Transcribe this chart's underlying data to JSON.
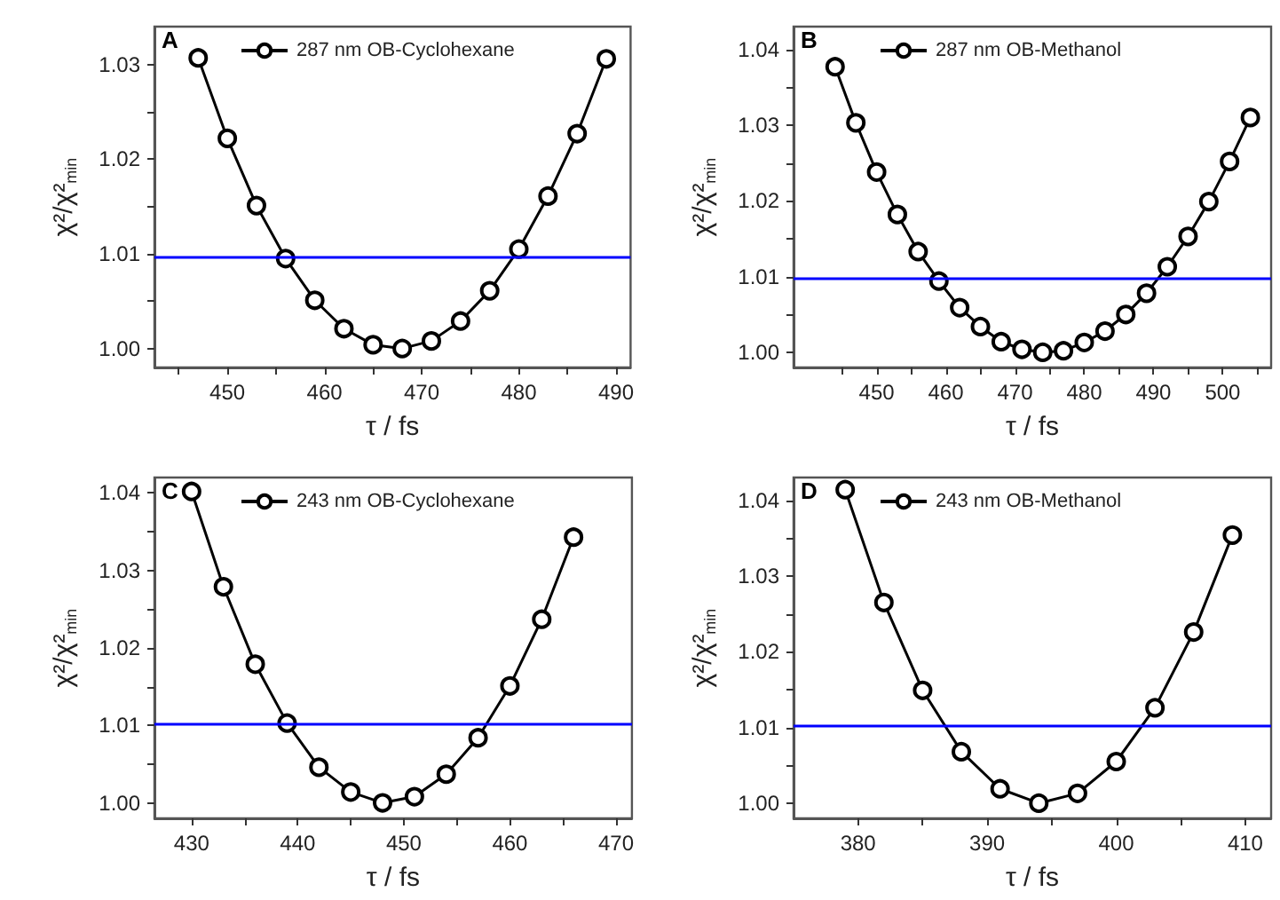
{
  "chart_data": [
    {
      "type": "line",
      "xlabel": "τ / fs",
      "ylabel": "χ²/χ²$_{min}$",
      "annotations": [
        "A"
      ],
      "legend": "top",
      "marker": "circle",
      "grid": false,
      "series": [
        {
          "name": "287 nm OB-Cyclohexane",
          "color": "#000000",
          "x": [
            447,
            450,
            453,
            456,
            459,
            462,
            465,
            468,
            471,
            474,
            477,
            480,
            483,
            486,
            489
          ],
          "values": [
            1.0307,
            1.0222,
            1.0151,
            1.0095,
            1.0051,
            1.0021,
            1.0004,
            1.0,
            1.0008,
            1.0029,
            1.0061,
            1.0105,
            1.0161,
            1.0227,
            1.0306
          ]
        }
      ],
      "ref_lines": [
        {
          "axis": "y",
          "value": 1.0097,
          "color": "#0000ff"
        }
      ],
      "xlim": [
        442.5,
        491.5
      ],
      "xticks": [
        {
          "value": 445,
          "label": null
        },
        450,
        {
          "value": 455,
          "label": null
        },
        460,
        {
          "value": 465,
          "label": null
        },
        470,
        {
          "value": 475,
          "label": null
        },
        480,
        {
          "value": 485,
          "label": null
        },
        490
      ],
      "ylim": [
        0.998,
        1.034
      ],
      "yticks": [
        {
          "value": 1,
          "label": "1.00"
        },
        {
          "value": 1.005,
          "label": null
        },
        {
          "value": 1.01,
          "label": "1.01"
        },
        {
          "value": 1.015,
          "label": null
        },
        {
          "value": 1.02,
          "label": "1.02"
        },
        {
          "value": 1.025,
          "label": null
        },
        {
          "value": 1.03,
          "label": "1.03"
        }
      ]
    },
    {
      "type": "line",
      "xlabel": "τ / fs",
      "ylabel": "χ²/χ²$_{min}$",
      "annotations": [
        "B"
      ],
      "legend": "top",
      "marker": "circle",
      "grid": false,
      "series": [
        {
          "name": "287 nm OB-Methanol",
          "color": "#000000",
          "x": [
            444,
            447,
            450,
            453,
            456,
            459,
            462,
            465,
            468,
            471,
            474,
            477,
            480,
            483,
            486,
            489,
            492,
            495,
            498,
            501,
            504
          ],
          "values": [
            1.0377,
            1.0303,
            1.0238,
            1.0182,
            1.0133,
            1.0094,
            1.0059,
            1.0034,
            1.0014,
            1.0004,
            1.0,
            1.0002,
            1.0013,
            1.0028,
            1.005,
            1.0078,
            1.0113,
            1.0153,
            1.0199,
            1.0252,
            1.031
          ]
        }
      ],
      "ref_lines": [
        {
          "axis": "y",
          "value": 1.0098,
          "color": "#0000ff"
        }
      ],
      "xlim": [
        438,
        507
      ],
      "xticks": [
        {
          "value": 445,
          "label": null
        },
        450,
        {
          "value": 455,
          "label": null
        },
        460,
        {
          "value": 465,
          "label": null
        },
        470,
        {
          "value": 475,
          "label": null
        },
        480,
        {
          "value": 485,
          "label": null
        },
        490,
        {
          "value": 495,
          "label": null
        },
        500,
        {
          "value": 505,
          "label": null
        }
      ],
      "ylim": [
        0.998,
        1.043
      ],
      "yticks": [
        {
          "value": 1,
          "label": "1.00"
        },
        {
          "value": 1.005,
          "label": null
        },
        {
          "value": 1.01,
          "label": "1.01"
        },
        {
          "value": 1.015,
          "label": null
        },
        {
          "value": 1.02,
          "label": "1.02"
        },
        {
          "value": 1.025,
          "label": null
        },
        {
          "value": 1.03,
          "label": "1.03"
        },
        {
          "value": 1.035,
          "label": null
        },
        {
          "value": 1.04,
          "label": "1.04"
        }
      ]
    },
    {
      "type": "line",
      "xlabel": "τ / fs",
      "ylabel": "χ²/χ²$_{min}$",
      "annotations": [
        "C"
      ],
      "legend": "top",
      "marker": "circle",
      "grid": false,
      "series": [
        {
          "name": "243 nm OB-Cyclohexane",
          "color": "#000000",
          "x": [
            430,
            433,
            436,
            439,
            442,
            445,
            448,
            451,
            454,
            457,
            460,
            463,
            466
          ],
          "values": [
            1.0402,
            1.0279,
            1.0179,
            1.0103,
            1.0046,
            1.0014,
            1.0,
            1.0008,
            1.0037,
            1.0084,
            1.0151,
            1.0237,
            1.0343
          ]
        }
      ],
      "ref_lines": [
        {
          "axis": "y",
          "value": 1.0102,
          "color": "#0000ff"
        }
      ],
      "xlim": [
        426.5,
        471.5
      ],
      "xticks": [
        430,
        {
          "value": 435,
          "label": null
        },
        440,
        {
          "value": 445,
          "label": null
        },
        450,
        {
          "value": 455,
          "label": null
        },
        460,
        {
          "value": 465,
          "label": null
        },
        470
      ],
      "ylim": [
        0.998,
        1.042
      ],
      "yticks": [
        {
          "value": 1,
          "label": "1.00"
        },
        {
          "value": 1.005,
          "label": null
        },
        {
          "value": 1.01,
          "label": "1.01"
        },
        {
          "value": 1.015,
          "label": null
        },
        {
          "value": 1.02,
          "label": "1.02"
        },
        {
          "value": 1.025,
          "label": null
        },
        {
          "value": 1.03,
          "label": "1.03"
        },
        {
          "value": 1.035,
          "label": null
        },
        {
          "value": 1.04,
          "label": "1.04"
        }
      ]
    },
    {
      "type": "line",
      "xlabel": "τ / fs",
      "ylabel": "χ²/χ²$_{min}$",
      "annotations": [
        "D"
      ],
      "legend": "top",
      "marker": "circle",
      "grid": false,
      "series": [
        {
          "name": "243 nm OB-Methanol",
          "color": "#000000",
          "x": [
            379,
            382,
            385,
            388,
            391,
            394,
            397,
            400,
            403,
            406,
            409
          ],
          "values": [
            1.0414,
            1.0265,
            1.0149,
            1.0068,
            1.0019,
            1.0,
            1.0013,
            1.0055,
            1.0126,
            1.0226,
            1.0354
          ]
        }
      ],
      "ref_lines": [
        {
          "axis": "y",
          "value": 1.0103,
          "color": "#0000ff"
        }
      ],
      "xlim": [
        375,
        412
      ],
      "xticks": [
        380,
        {
          "value": 385,
          "label": null
        },
        390,
        {
          "value": 395,
          "label": null
        },
        400,
        {
          "value": 405,
          "label": null
        },
        410
      ],
      "ylim": [
        0.998,
        1.043
      ],
      "yticks": [
        {
          "value": 1,
          "label": "1.00"
        },
        {
          "value": 1.005,
          "label": null
        },
        {
          "value": 1.01,
          "label": "1.01"
        },
        {
          "value": 1.015,
          "label": null
        },
        {
          "value": 1.02,
          "label": "1.02"
        },
        {
          "value": 1.025,
          "label": null
        },
        {
          "value": 1.03,
          "label": "1.03"
        },
        {
          "value": 1.035,
          "label": null
        },
        {
          "value": 1.04,
          "label": "1.04"
        }
      ]
    }
  ]
}
